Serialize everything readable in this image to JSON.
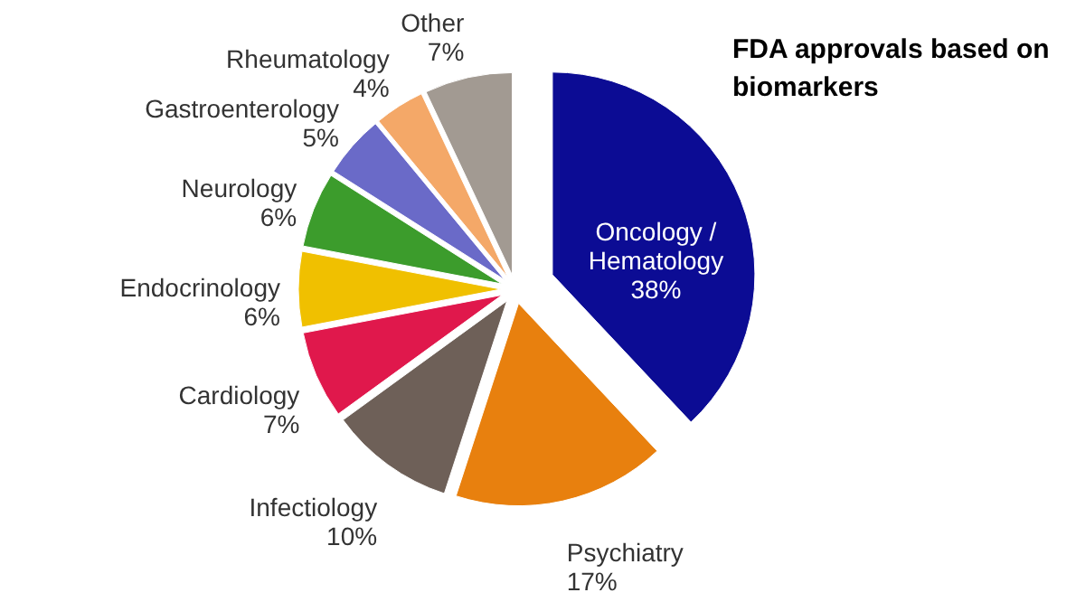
{
  "chart_data": {
    "type": "pie",
    "title": "FDA approvals based on biomarkers",
    "categories": [
      "Oncology / Hematology",
      "Psychiatry",
      "Infectiology",
      "Cardiology",
      "Endocrinology",
      "Neurology",
      "Gastroenterology",
      "Rheumatology",
      "Other"
    ],
    "values": [
      38,
      17,
      10,
      7,
      6,
      6,
      5,
      4,
      7
    ],
    "value_labels": [
      "38%",
      "17%",
      "10%",
      "7%",
      "6%",
      "6%",
      "5%",
      "4%",
      "7%"
    ],
    "colors": [
      "#0c0c94",
      "#e8800e",
      "#6e6058",
      "#e0184c",
      "#f0c000",
      "#3c9c2c",
      "#6a6ac8",
      "#f4a868",
      "#a29a92"
    ]
  }
}
